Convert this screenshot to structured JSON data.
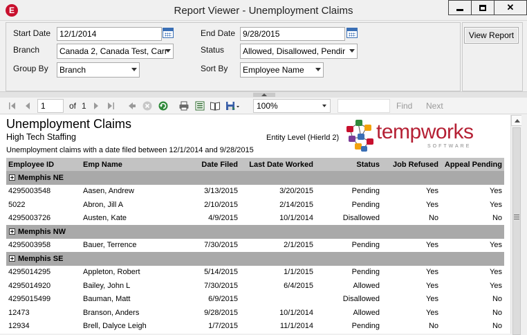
{
  "window": {
    "title": "Report Viewer - Unemployment Claims",
    "app_icon_letter": "E"
  },
  "params": {
    "start_date_label": "Start Date",
    "start_date_value": "12/1/2014",
    "end_date_label": "End Date",
    "end_date_value": "9/28/2015",
    "branch_label": "Branch",
    "branch_value": "Canada 2, Canada Test, Carr",
    "status_label": "Status",
    "status_value": "Allowed, Disallowed, Pendir",
    "group_by_label": "Group By",
    "group_by_value": "Branch",
    "sort_by_label": "Sort By",
    "sort_by_value": "Employee Name",
    "view_report_label": "View Report"
  },
  "toolbar": {
    "page_current": "1",
    "page_of_label": "of",
    "page_total": "1",
    "zoom_value": "100%",
    "find_label": "Find",
    "next_label": "Next"
  },
  "report": {
    "title": "Unemployment Claims",
    "company": "High Tech Staffing",
    "entity_level": "Entity Level (Hierld 2)",
    "description": "Unemployment claims with a date filed between 12/1/2014 and 9/28/2015",
    "logo_word": "tempworks",
    "logo_sub": "SOFTWARE",
    "columns": [
      "Employee ID",
      "Emp Name",
      "Date Filed",
      "Last Date Worked",
      "Status",
      "Job Refused",
      "Appeal Pending"
    ],
    "groups": [
      {
        "name": "Memphis NE",
        "rows": [
          [
            "4295003548",
            "Aasen, Andrew",
            "3/13/2015",
            "3/20/2015",
            "Pending",
            "Yes",
            "Yes"
          ],
          [
            "5022",
            "Abron, Jill A",
            "2/10/2015",
            "2/14/2015",
            "Pending",
            "Yes",
            "Yes"
          ],
          [
            "4295003726",
            "Austen, Kate",
            "4/9/2015",
            "10/1/2014",
            "Disallowed",
            "No",
            "No"
          ]
        ]
      },
      {
        "name": "Memphis NW",
        "rows": [
          [
            "4295003958",
            "Bauer, Terrence",
            "7/30/2015",
            "2/1/2015",
            "Pending",
            "Yes",
            "Yes"
          ]
        ]
      },
      {
        "name": "Memphis SE",
        "rows": [
          [
            "4295014295",
            "Appleton, Robert",
            "5/14/2015",
            "1/1/2015",
            "Pending",
            "Yes",
            "Yes"
          ],
          [
            "4295014920",
            "Bailey, John L",
            "7/30/2015",
            "6/4/2015",
            "Allowed",
            "Yes",
            "Yes"
          ],
          [
            "4295015499",
            "Bauman, Matt",
            "6/9/2015",
            "",
            "Disallowed",
            "Yes",
            "No"
          ],
          [
            "12473",
            "Branson, Anders",
            "9/28/2015",
            "10/1/2014",
            "Allowed",
            "Yes",
            "No"
          ],
          [
            "12934",
            "Brell, Dalyce Leigh",
            "1/7/2015",
            "11/1/2014",
            "Pending",
            "No",
            "No"
          ]
        ]
      }
    ]
  },
  "colors": {
    "accent": "#b52034",
    "header_bg": "#c3c3c3",
    "group_bg": "#a9a9a9"
  }
}
